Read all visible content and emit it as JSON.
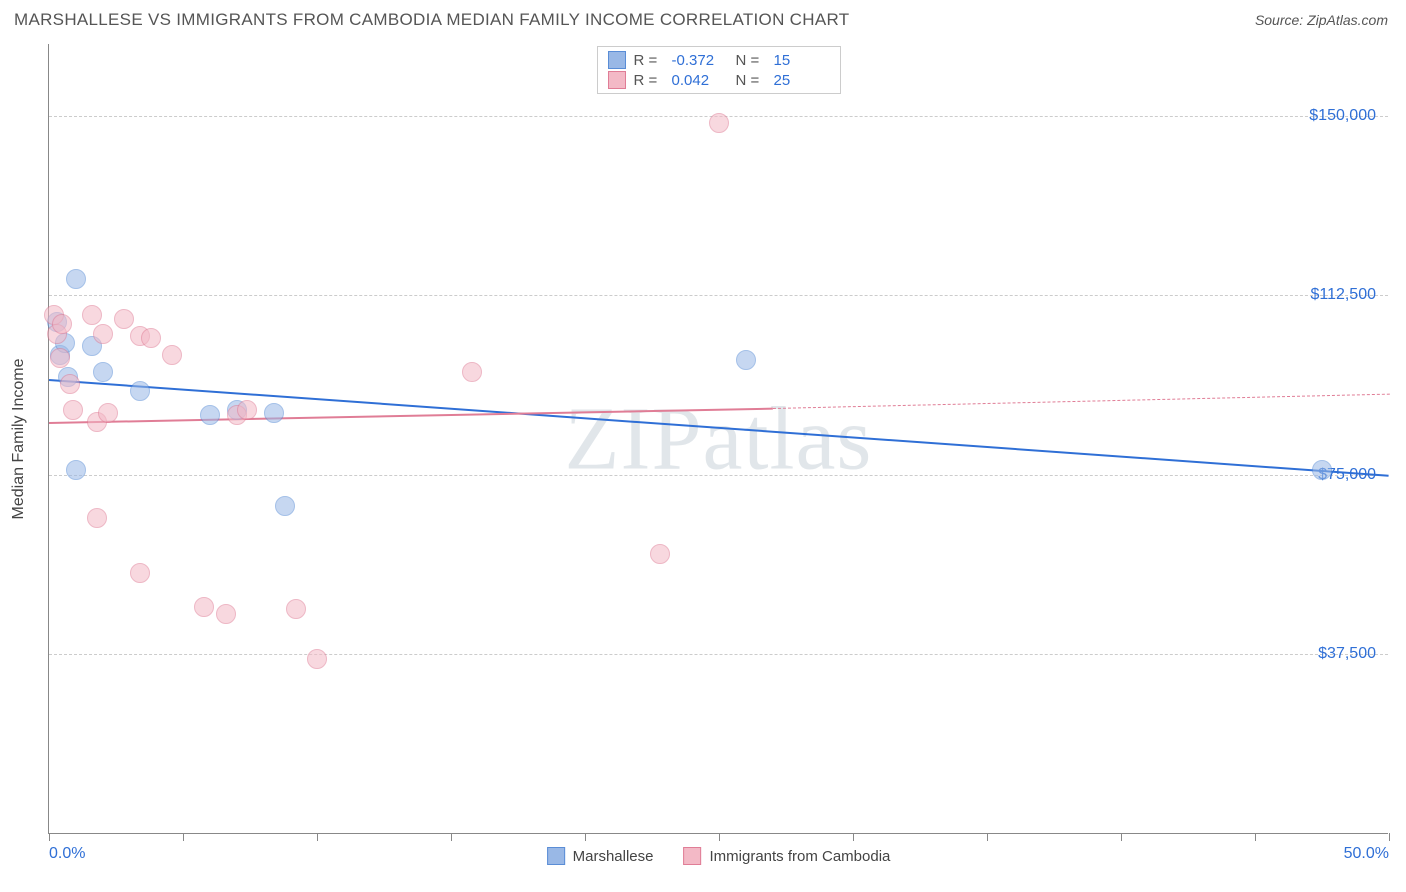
{
  "title": "MARSHALLESE VS IMMIGRANTS FROM CAMBODIA MEDIAN FAMILY INCOME CORRELATION CHART",
  "source_label": "Source:",
  "source_value": "ZipAtlas.com",
  "ylabel": "Median Family Income",
  "watermark": "ZIPatlas",
  "chart": {
    "type": "scatter",
    "xlim": [
      0,
      50
    ],
    "ylim": [
      0,
      165000
    ],
    "x_tick_positions": [
      0,
      5,
      10,
      15,
      20,
      25,
      30,
      35,
      40,
      45,
      50
    ],
    "x_tick_labels": {
      "0": "0.0%",
      "50": "50.0%"
    },
    "y_gridlines": [
      37500,
      75000,
      112500,
      150000
    ],
    "y_tick_labels": {
      "37500": "$37,500",
      "75000": "$75,000",
      "112500": "$112,500",
      "150000": "$150,000"
    },
    "background_color": "#ffffff",
    "grid_color": "#cccccc",
    "axis_color": "#888888",
    "tick_label_color": "#2f6fd6",
    "marker_radius": 10,
    "marker_opacity": 0.55,
    "series": [
      {
        "name": "Marshallese",
        "fill": "#99b8e6",
        "stroke": "#5a8dd6",
        "R": "-0.372",
        "N": "15",
        "trend": {
          "x0": 0,
          "y0": 95000,
          "x1": 50,
          "y1": 75000,
          "color": "#2f6fd6",
          "width": 2.5,
          "dash": false
        },
        "points": [
          {
            "x": 0.3,
            "y": 107000
          },
          {
            "x": 0.4,
            "y": 100000
          },
          {
            "x": 0.6,
            "y": 102500
          },
          {
            "x": 0.7,
            "y": 95500
          },
          {
            "x": 1.0,
            "y": 116000
          },
          {
            "x": 1.6,
            "y": 102000
          },
          {
            "x": 2.0,
            "y": 96500
          },
          {
            "x": 3.4,
            "y": 92500
          },
          {
            "x": 6.0,
            "y": 87500
          },
          {
            "x": 7.0,
            "y": 88500
          },
          {
            "x": 8.4,
            "y": 88000
          },
          {
            "x": 8.8,
            "y": 68500
          },
          {
            "x": 1.0,
            "y": 76000
          },
          {
            "x": 26.0,
            "y": 99000
          },
          {
            "x": 47.5,
            "y": 76000
          }
        ]
      },
      {
        "name": "Immigrants from Cambodia",
        "fill": "#f3b9c6",
        "stroke": "#e07d96",
        "R": "0.042",
        "N": "25",
        "trend_solid": {
          "x0": 0,
          "y0": 86000,
          "x1": 27,
          "y1": 89000,
          "color": "#e07d96",
          "width": 2,
          "dash": false
        },
        "trend_dash": {
          "x0": 27,
          "y0": 89000,
          "x1": 50,
          "y1": 92000,
          "color": "#e07d96",
          "width": 1.5,
          "dash": true
        },
        "points": [
          {
            "x": 0.2,
            "y": 108500
          },
          {
            "x": 0.3,
            "y": 104500
          },
          {
            "x": 0.4,
            "y": 99500
          },
          {
            "x": 0.5,
            "y": 106500
          },
          {
            "x": 0.9,
            "y": 88500
          },
          {
            "x": 1.6,
            "y": 108500
          },
          {
            "x": 1.8,
            "y": 86000
          },
          {
            "x": 2.0,
            "y": 104500
          },
          {
            "x": 2.2,
            "y": 88000
          },
          {
            "x": 2.8,
            "y": 107500
          },
          {
            "x": 3.4,
            "y": 104000
          },
          {
            "x": 3.8,
            "y": 103500
          },
          {
            "x": 4.6,
            "y": 100000
          },
          {
            "x": 1.8,
            "y": 66000
          },
          {
            "x": 3.4,
            "y": 54500
          },
          {
            "x": 5.8,
            "y": 47500
          },
          {
            "x": 6.6,
            "y": 46000
          },
          {
            "x": 7.0,
            "y": 87500
          },
          {
            "x": 7.4,
            "y": 88500
          },
          {
            "x": 9.2,
            "y": 47000
          },
          {
            "x": 10.0,
            "y": 36500
          },
          {
            "x": 15.8,
            "y": 96500
          },
          {
            "x": 22.8,
            "y": 58500
          },
          {
            "x": 25.0,
            "y": 148500
          },
          {
            "x": 0.8,
            "y": 94000
          }
        ]
      }
    ]
  },
  "legend_top": [
    {
      "swatch_fill": "#99b8e6",
      "swatch_stroke": "#5a8dd6",
      "R_label": "R =",
      "R": "-0.372",
      "N_label": "N =",
      "N": "15"
    },
    {
      "swatch_fill": "#f3b9c6",
      "swatch_stroke": "#e07d96",
      "R_label": "R =",
      "R": "0.042",
      "N_label": "N =",
      "N": "25"
    }
  ],
  "legend_bottom": [
    {
      "swatch_fill": "#99b8e6",
      "swatch_stroke": "#5a8dd6",
      "label": "Marshallese"
    },
    {
      "swatch_fill": "#f3b9c6",
      "swatch_stroke": "#e07d96",
      "label": "Immigrants from Cambodia"
    }
  ]
}
